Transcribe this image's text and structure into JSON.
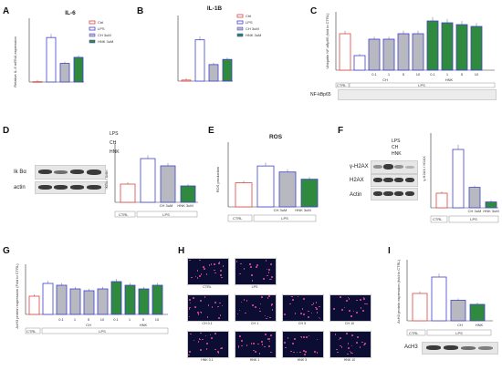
{
  "colors": {
    "ctrl": "#e0453f",
    "lps": "#3f3fd0",
    "ch": "#b8b8c0",
    "hnk": "#2f8a3e",
    "label_text": "#111111"
  },
  "panels": {
    "A": {
      "letter": "A",
      "title": "IL-6",
      "ylabel": "Relative IL-6 mRNA expression"
    },
    "B": {
      "letter": "B",
      "title": "IL-1B"
    },
    "C": {
      "letter": "C",
      "ylabel": "Ubiquitin NF-κBp65 (fold to CTRL)",
      "blot_label": "NF-kBp65",
      "ctrl_label": "CTRL",
      "lps_label": "LPS",
      "ch_label": "CH",
      "hnk_label": "HNK",
      "doses": [
        "0.1",
        "1",
        "5",
        "10"
      ]
    },
    "D": {
      "letter": "D",
      "ylabel": "IKBα / Actin",
      "blot_rows": [
        "Ik Bα",
        "actin"
      ],
      "treat_rows": [
        "LPS",
        "CH",
        "HNK"
      ],
      "ctrl_label": "CTRL",
      "lps_label": "LPS",
      "bar_labels": [
        "CH 3uM",
        "HNK 3uM"
      ]
    },
    "E": {
      "letter": "E",
      "title": "ROS",
      "ylabel": "ROS production",
      "ctrl_label": "CTRL",
      "lps_label": "LPS",
      "bar_labels": [
        "CH 3uM",
        "HNK 3uM"
      ]
    },
    "F": {
      "letter": "F",
      "ylabel": "γ-H2AX / H2AX",
      "blot_rows": [
        "γ-H2AX",
        "H2AX",
        "Actin"
      ],
      "treat_rows": [
        "LPS",
        "CH",
        "HNK"
      ],
      "ctrl_label": "CTRL",
      "lps_label": "LPS",
      "bar_labels": [
        "CH 3uM",
        "HNK 3uM"
      ]
    },
    "G": {
      "letter": "G",
      "ylabel": "AcH3 protein expression (Fold to CTRL)",
      "ctrl_label": "CTRL",
      "lps_label": "LPS",
      "ch_label": "CH",
      "hnk_label": "HNK",
      "doses": [
        "0.1",
        "1",
        "5",
        "10"
      ]
    },
    "H": {
      "letter": "H",
      "images": [
        "CTRL",
        "LPS",
        "CH 0.1",
        "CH 1",
        "CH 5",
        "CH 10",
        "HNK 0.1",
        "HNK 1",
        "HNK 5",
        "HNK 10"
      ]
    },
    "I": {
      "letter": "I",
      "ylabel": "AcH3 protein expression (fold to CTRL)",
      "blot_label": "AcH3",
      "ctrl_label": "CTRL",
      "lps_label": "LPS",
      "bar_labels": [
        "CH",
        "HNK"
      ]
    }
  },
  "legend": [
    "Ctrl",
    "LPS",
    "CH 3uM",
    "HNK 3uM"
  ],
  "chart_data": [
    {
      "type": "bar",
      "panel": "A",
      "title": "IL-6",
      "categories": [
        "Ctrl",
        "LPS",
        "CH 3uM",
        "HNK 3uM"
      ],
      "values": [
        1,
        148,
        62,
        82
      ],
      "ylim": [
        0,
        200
      ]
    },
    {
      "type": "bar",
      "panel": "B",
      "title": "IL-1B",
      "categories": [
        "Ctrl",
        "LPS",
        "CH 3uM",
        "HNK 3uM"
      ],
      "values": [
        1,
        40,
        16,
        21
      ],
      "ylim": [
        0,
        60
      ]
    },
    {
      "type": "bar",
      "panel": "C",
      "categories": [
        "CTRL",
        "LPS",
        "CH 0.1",
        "CH 1",
        "CH 5",
        "CH 10",
        "HNK 0.1",
        "HNK 1",
        "HNK 5",
        "HNK 10"
      ],
      "values": [
        1.0,
        0.4,
        0.85,
        0.85,
        1.0,
        1.0,
        1.35,
        1.3,
        1.25,
        1.2
      ],
      "ylim": [
        0,
        1.5
      ]
    },
    {
      "type": "bar",
      "panel": "D",
      "categories": [
        "CTRL",
        "LPS",
        "CH 3uM",
        "HNK 3uM"
      ],
      "values": [
        1.0,
        2.4,
        2.0,
        0.9
      ],
      "ylim": [
        0,
        3
      ]
    },
    {
      "type": "bar",
      "panel": "E",
      "title": "ROS",
      "categories": [
        "CTRL",
        "LPS",
        "CH 3uM",
        "HNK 3uM"
      ],
      "values": [
        1.0,
        1.7,
        1.45,
        1.15
      ],
      "ylim": [
        0,
        2.5
      ]
    },
    {
      "type": "bar",
      "panel": "F",
      "categories": [
        "CTRL",
        "LPS",
        "CH 3uM",
        "HNK 3uM"
      ],
      "values": [
        1.0,
        4.0,
        1.4,
        0.4
      ],
      "ylim": [
        0,
        5
      ]
    },
    {
      "type": "bar",
      "panel": "G",
      "categories": [
        "CTRL",
        "LPS",
        "CH 0.1",
        "CH 1",
        "CH 5",
        "CH 10",
        "HNK 0.1",
        "HNK 1",
        "HNK 5",
        "HNK 10"
      ],
      "values": [
        1.0,
        1.7,
        1.6,
        1.4,
        1.3,
        1.4,
        1.8,
        1.6,
        1.4,
        1.6
      ],
      "ylim": [
        0,
        2.5
      ]
    },
    {
      "type": "bar",
      "panel": "I",
      "categories": [
        "CTRL",
        "LPS",
        "CH",
        "HNK"
      ],
      "values": [
        1.0,
        1.6,
        0.75,
        0.6
      ],
      "ylim": [
        0,
        2
      ]
    }
  ]
}
